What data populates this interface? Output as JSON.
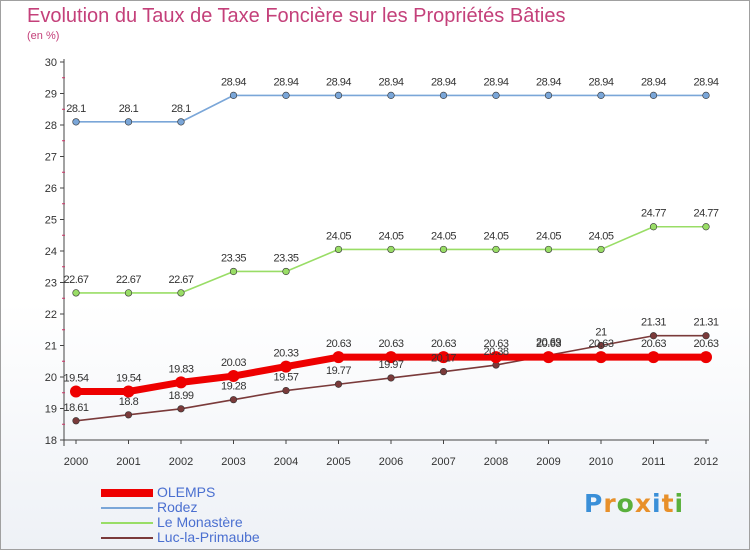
{
  "chart_data": {
    "type": "line",
    "title": "Evolution du Taux de Taxe Foncière sur les Propriétés Bâties",
    "unit": "(en %)",
    "x": [
      "2000",
      "2001",
      "2002",
      "2003",
      "2004",
      "2005",
      "2006",
      "2007",
      "2008",
      "2009",
      "2010",
      "2011",
      "2012"
    ],
    "ylim": [
      18,
      30
    ],
    "yticks": [
      "18",
      "19",
      "20",
      "21",
      "22",
      "23",
      "24",
      "25",
      "26",
      "27",
      "28",
      "29",
      "30"
    ],
    "grid": false,
    "legend_position": "bottom-left",
    "series": [
      {
        "name": "OLEMPS",
        "color": "#ee0000",
        "values": [
          19.54,
          19.54,
          19.83,
          20.03,
          20.33,
          20.63,
          20.63,
          20.63,
          20.63,
          20.63,
          20.63,
          20.63,
          20.63
        ],
        "labels": [
          "19.54",
          "19.54",
          "19.83",
          "20.03",
          "20.33",
          "20.63",
          "20.63",
          "20.63",
          "20.63",
          "20.63",
          "20.63",
          "20.63",
          "20.63"
        ]
      },
      {
        "name": "Rodez",
        "color": "#7aa6d8",
        "values": [
          28.1,
          28.1,
          28.1,
          28.94,
          28.94,
          28.94,
          28.94,
          28.94,
          28.94,
          28.94,
          28.94,
          28.94,
          28.94
        ],
        "labels": [
          "28.1",
          "28.1",
          "28.1",
          "28.94",
          "28.94",
          "28.94",
          "28.94",
          "28.94",
          "28.94",
          "28.94",
          "28.94",
          "28.94",
          "28.94"
        ]
      },
      {
        "name": "Le Monastère",
        "color": "#99dd66",
        "values": [
          22.67,
          22.67,
          22.67,
          23.35,
          23.35,
          24.05,
          24.05,
          24.05,
          24.05,
          24.05,
          24.05,
          24.77,
          24.77
        ],
        "labels": [
          "22.67",
          "22.67",
          "22.67",
          "23.35",
          "23.35",
          "24.05",
          "24.05",
          "24.05",
          "24.05",
          "24.05",
          "24.05",
          "24.77",
          "24.77"
        ]
      },
      {
        "name": "Luc-la-Primaube",
        "color": "#7a3a3a",
        "values": [
          18.61,
          18.8,
          18.99,
          19.28,
          19.57,
          19.77,
          19.97,
          20.17,
          20.38,
          20.69,
          21,
          21.31,
          21.31
        ],
        "labels": [
          "18.61",
          "18.8",
          "18.99",
          "19.28",
          "19.57",
          "19.77",
          "19.97",
          "20.17",
          "20.38",
          "20.69",
          "21",
          "21.31",
          "21.31"
        ]
      }
    ]
  },
  "brand": {
    "letters": [
      "P",
      "r",
      "o",
      "x",
      "i",
      "t",
      "i"
    ],
    "colors": [
      "#3a8fd8",
      "#e8902a",
      "#5ab03c",
      "#e8902a",
      "#3a8fd8",
      "#e8902a",
      "#5ab03c"
    ]
  }
}
